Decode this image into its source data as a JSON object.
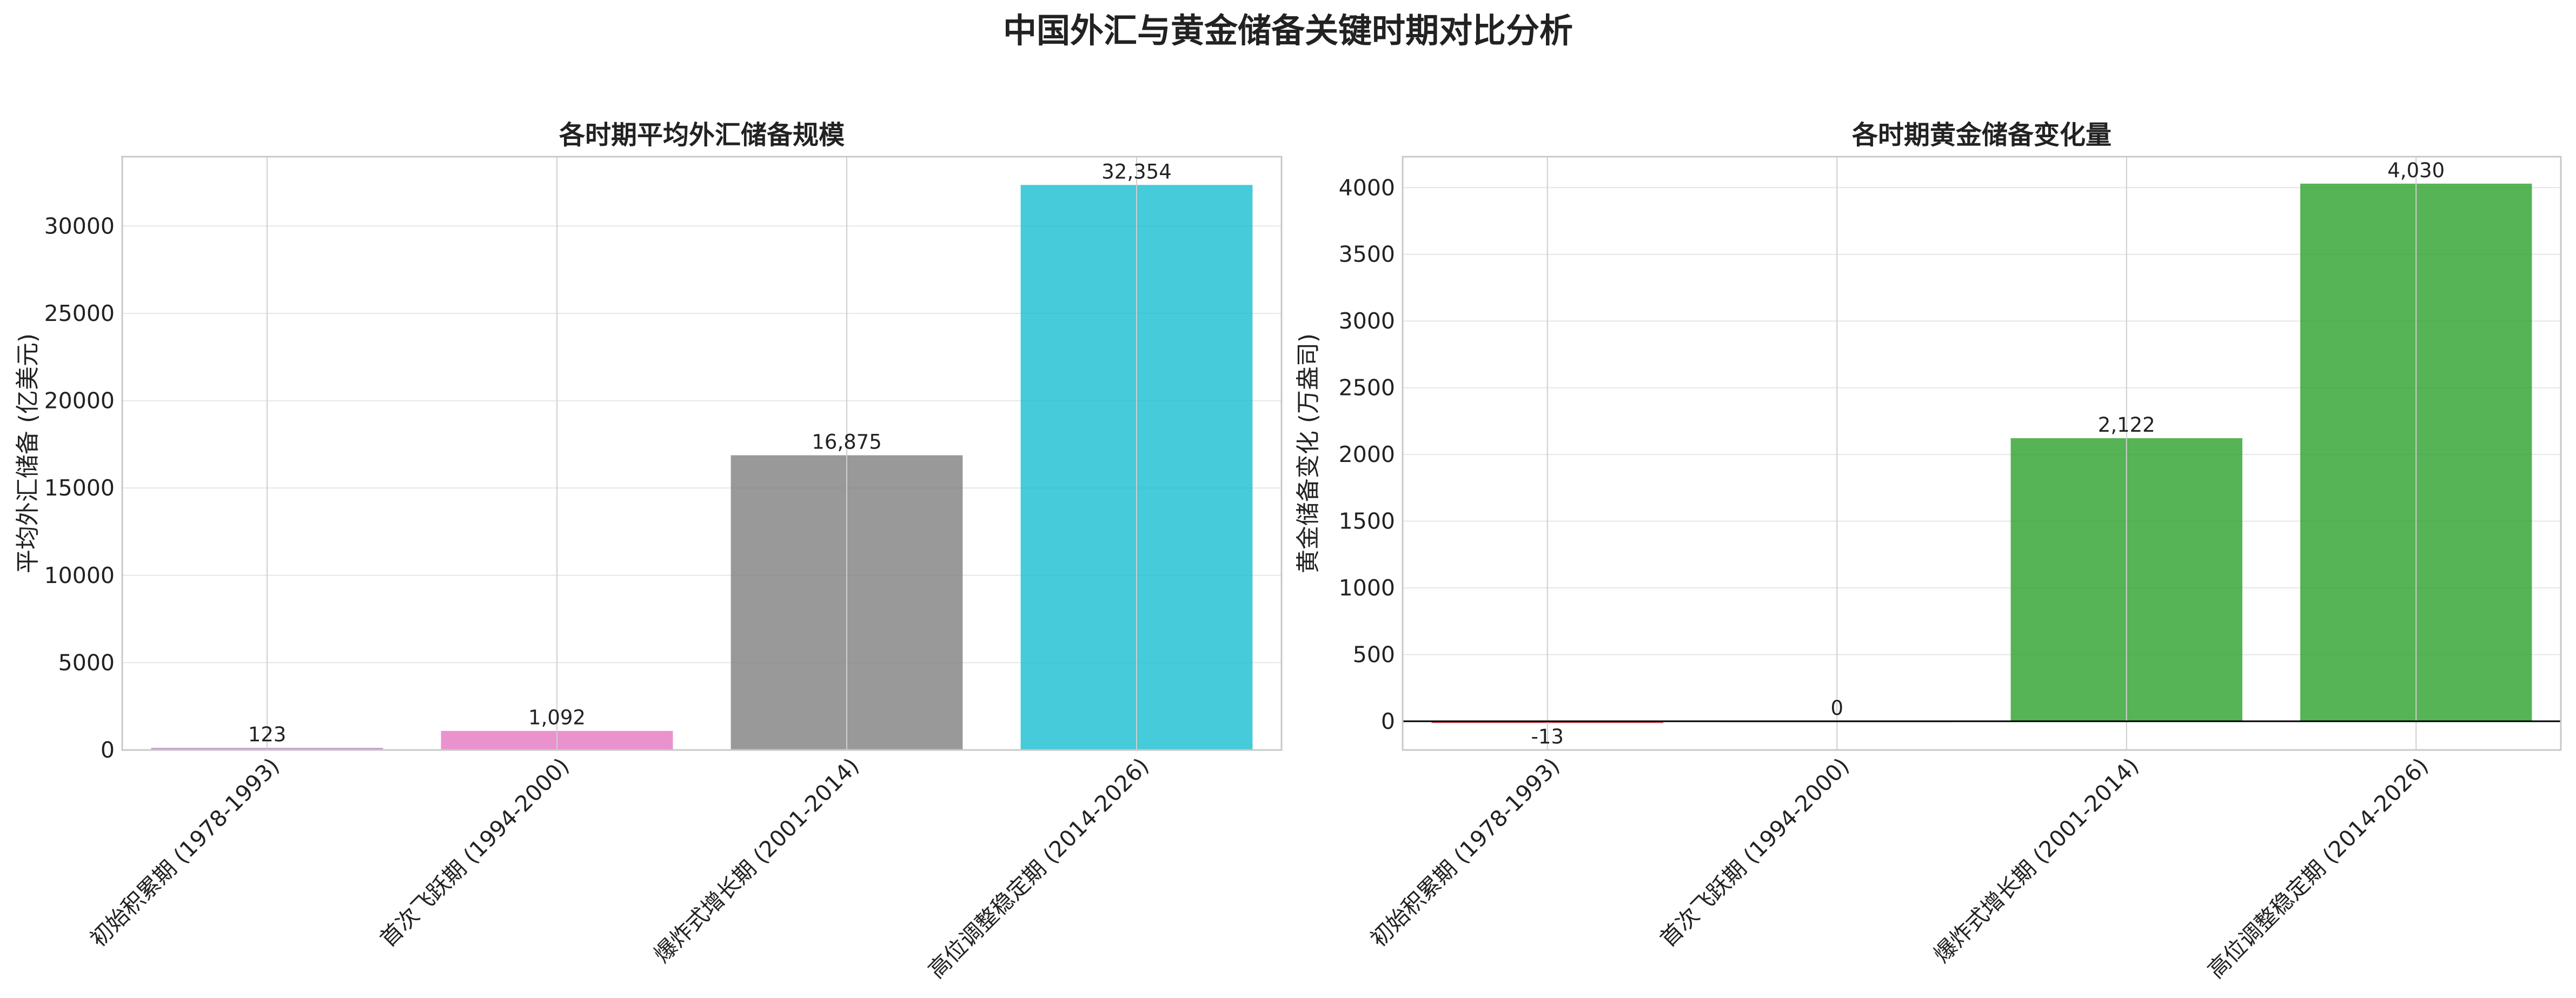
{
  "figure": {
    "title": "中国外汇与黄金储备关键时期对比分析"
  },
  "chart_data": [
    {
      "type": "bar",
      "title": "各时期平均外汇储备规模",
      "xlabel": "",
      "ylabel": "平均外汇储备 (亿美元)",
      "categories": [
        "初始积累期 (1978-1993)",
        "首次飞跃期 (1994-2000)",
        "爆炸式增长期 (2001-2014)",
        "高位调整稳定期 (2014-2026)"
      ],
      "values": [
        123,
        1092,
        16875,
        32354
      ],
      "value_labels": [
        "123",
        "1,092",
        "16,875",
        "32,354"
      ],
      "bar_colors": [
        "#b384c2",
        "#e377c2",
        "#7f7f7f",
        "#17becf"
      ],
      "ylim": [
        0,
        33971
      ],
      "yticks": [
        0,
        5000,
        10000,
        15000,
        20000,
        25000,
        30000
      ],
      "grid": true
    },
    {
      "type": "bar",
      "title": "各时期黄金储备变化量",
      "xlabel": "",
      "ylabel": "黄金储备变化 (万盎司)",
      "categories": [
        "初始积累期 (1978-1993)",
        "首次飞跃期 (1994-2000)",
        "爆炸式增长期 (2001-2014)",
        "高位调整稳定期 (2014-2026)"
      ],
      "values": [
        -13,
        0,
        2122,
        4030
      ],
      "value_labels": [
        "-13",
        "0",
        "2,122",
        "4,030"
      ],
      "bar_colors": [
        "#d62728",
        "#2ca02c",
        "#2ca02c",
        "#2ca02c"
      ],
      "ylim": [
        -215,
        4232
      ],
      "yticks": [
        0,
        500,
        1000,
        1500,
        2000,
        2500,
        3000,
        3500,
        4000
      ],
      "zero_line": true,
      "grid": true
    }
  ]
}
